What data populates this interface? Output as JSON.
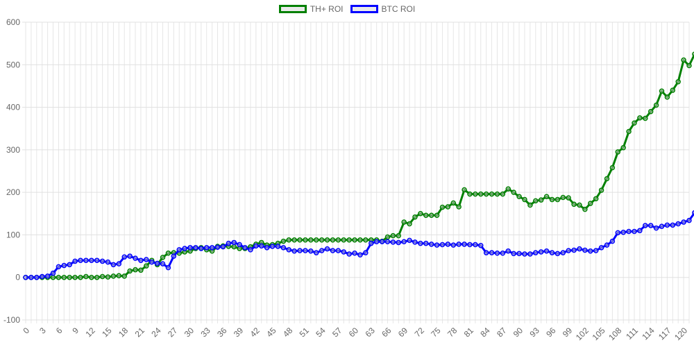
{
  "chart_data": {
    "type": "line",
    "title": "",
    "xlabel": "",
    "ylabel": "",
    "ylim": [
      -100,
      600
    ],
    "y_ticks": [
      -100,
      0,
      100,
      200,
      300,
      400,
      500,
      600
    ],
    "x_range": [
      0,
      121
    ],
    "x_tick_step": 3,
    "grid": true,
    "legend_position": "top-center",
    "series": [
      {
        "name": "TH+ ROI",
        "color": "#008000",
        "values": [
          0,
          0,
          0,
          0,
          0,
          0,
          0,
          0,
          0,
          0,
          0,
          2,
          0,
          0,
          2,
          1,
          3,
          4,
          3,
          15,
          18,
          17,
          27,
          40,
          30,
          47,
          57,
          58,
          57,
          60,
          62,
          68,
          70,
          65,
          62,
          73,
          74,
          73,
          72,
          68,
          68,
          72,
          78,
          82,
          76,
          77,
          80,
          85,
          88,
          88,
          88,
          88,
          88,
          88,
          88,
          88,
          88,
          88,
          88,
          88,
          88,
          88,
          88,
          88,
          88,
          85,
          95,
          98,
          98,
          130,
          126,
          142,
          150,
          146,
          146,
          146,
          165,
          166,
          175,
          166,
          206,
          196,
          196,
          196,
          196,
          196,
          196,
          196,
          208,
          200,
          190,
          183,
          170,
          180,
          182,
          190,
          183,
          183,
          188,
          187,
          172,
          170,
          160,
          174,
          185,
          205,
          232,
          258,
          295,
          305,
          343,
          363,
          375,
          374,
          390,
          405,
          438,
          424,
          440,
          460,
          511,
          498,
          525
        ]
      },
      {
        "name": "BTC ROI",
        "color": "#0000ff",
        "values": [
          0,
          0,
          0,
          2,
          3,
          10,
          25,
          28,
          30,
          38,
          40,
          40,
          40,
          40,
          38,
          36,
          30,
          32,
          48,
          50,
          45,
          40,
          42,
          36,
          33,
          32,
          23,
          50,
          65,
          68,
          70,
          70,
          68,
          70,
          70,
          71,
          72,
          80,
          82,
          77,
          70,
          65,
          74,
          74,
          70,
          73,
          73,
          70,
          65,
          62,
          63,
          63,
          62,
          58,
          63,
          67,
          63,
          63,
          60,
          55,
          57,
          53,
          58,
          80,
          84,
          84,
          84,
          83,
          82,
          84,
          87,
          83,
          80,
          80,
          78,
          76,
          77,
          78,
          76,
          78,
          78,
          77,
          77,
          75,
          58,
          58,
          57,
          57,
          62,
          56,
          56,
          55,
          55,
          58,
          60,
          62,
          58,
          56,
          58,
          63,
          64,
          67,
          64,
          62,
          63,
          70,
          76,
          85,
          105,
          106,
          108,
          108,
          110,
          122,
          122,
          116,
          120,
          123,
          123,
          126,
          130,
          134,
          152
        ]
      }
    ]
  }
}
